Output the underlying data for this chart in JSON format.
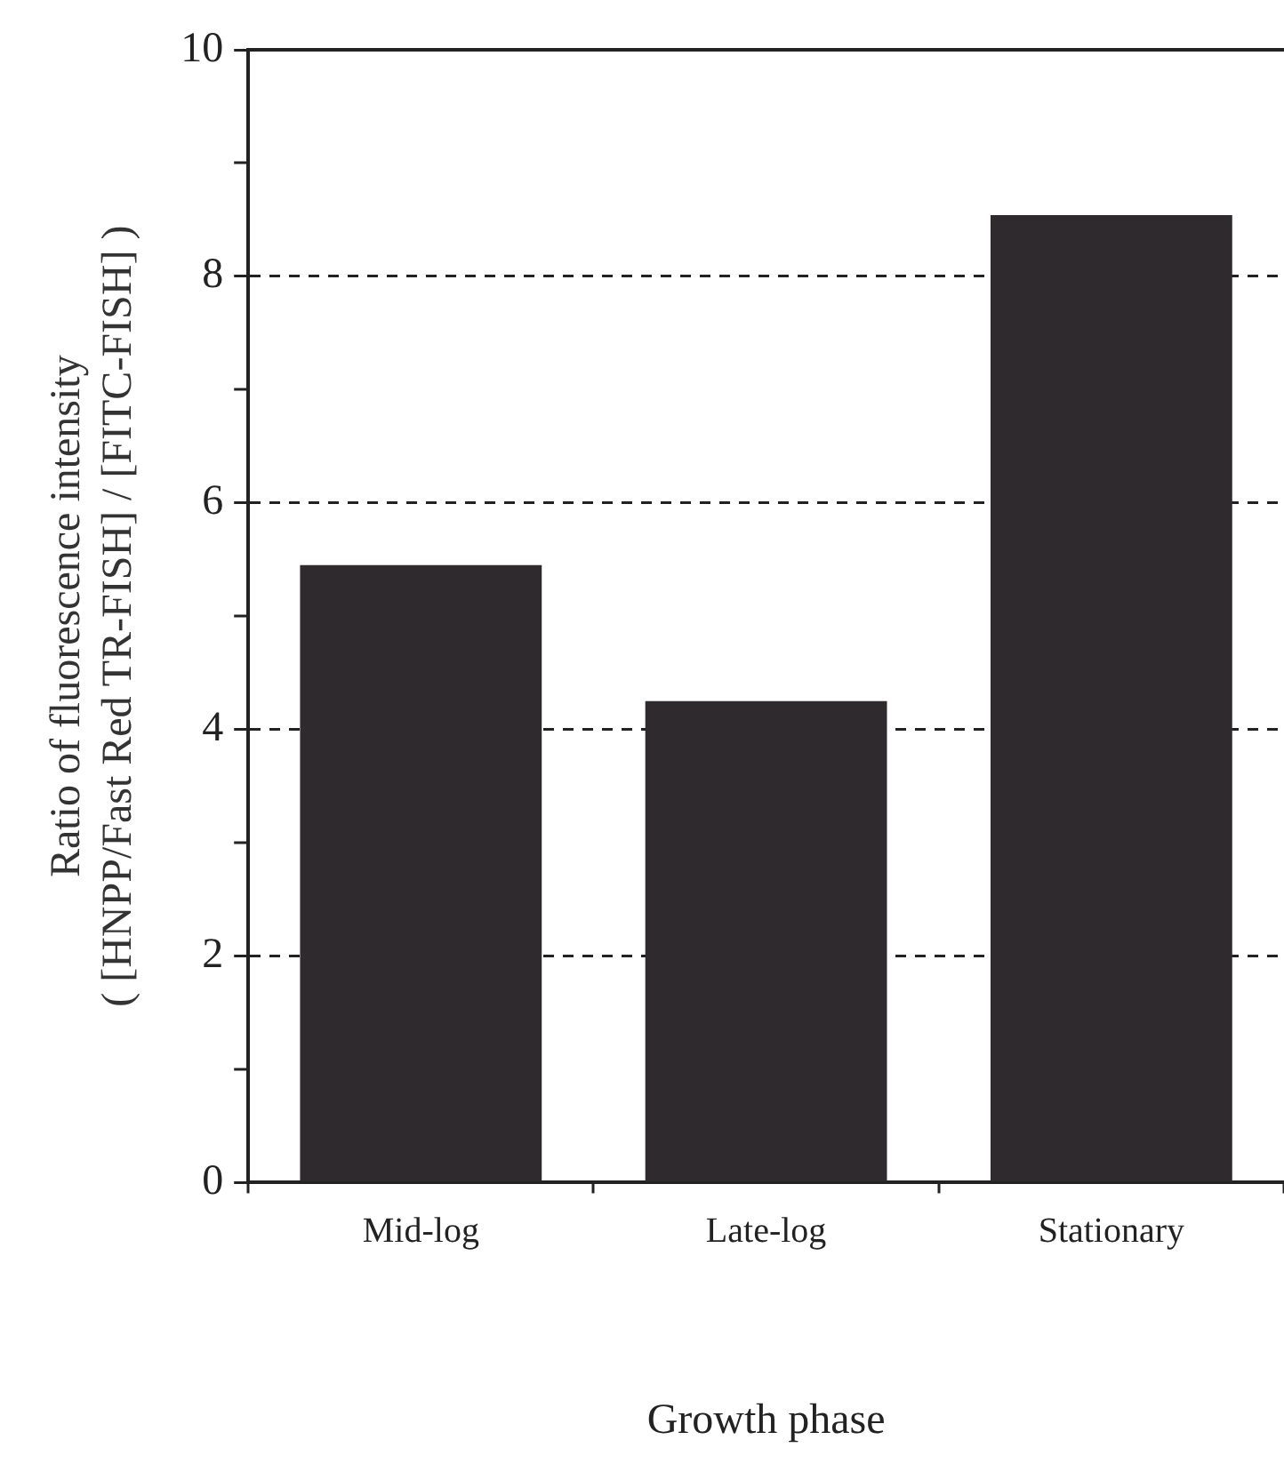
{
  "chart_data": {
    "type": "bar",
    "xlabel": "Growth phase",
    "ylabel": "Ratio of fluorescence intensity\n( [HNPP/Fast Red TR-FISH] / [FITC-FISH] )",
    "categories": [
      "Mid-log",
      "Late-log",
      "Stationary"
    ],
    "values": [
      5.45,
      4.25,
      8.54
    ],
    "color": "#2e2a2e",
    "ylim": [
      0,
      10
    ],
    "yticks": [
      0,
      {
        "value": 1,
        "label": null
      },
      2,
      {
        "value": 3,
        "label": null
      },
      4,
      {
        "value": 5,
        "label": null
      },
      6,
      {
        "value": 7,
        "label": null
      },
      8,
      {
        "value": 9,
        "label": null
      },
      10
    ],
    "grid": "y",
    "line_style": "dashed",
    "legend": false
  }
}
